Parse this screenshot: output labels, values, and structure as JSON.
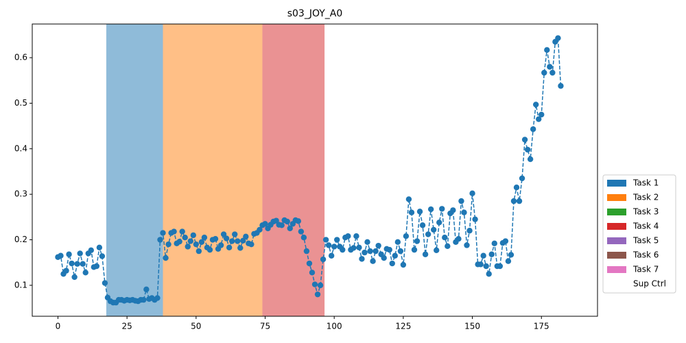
{
  "chart_data": {
    "type": "line",
    "title": "s03_JOY_A0",
    "values": [
      0.162,
      0.165,
      0.125,
      0.132,
      0.168,
      0.148,
      0.118,
      0.147,
      0.17,
      0.147,
      0.128,
      0.17,
      0.177,
      0.14,
      0.142,
      0.183,
      0.164,
      0.105,
      0.073,
      0.065,
      0.062,
      0.062,
      0.068,
      0.068,
      0.066,
      0.068,
      0.067,
      0.068,
      0.066,
      0.065,
      0.068,
      0.068,
      0.091,
      0.07,
      0.072,
      0.068,
      0.072,
      0.2,
      0.215,
      0.16,
      0.19,
      0.215,
      0.218,
      0.192,
      0.196,
      0.218,
      0.205,
      0.185,
      0.197,
      0.21,
      0.19,
      0.175,
      0.195,
      0.205,
      0.183,
      0.178,
      0.2,
      0.202,
      0.18,
      0.188,
      0.212,
      0.203,
      0.183,
      0.197,
      0.212,
      0.197,
      0.182,
      0.198,
      0.207,
      0.192,
      0.19,
      0.213,
      0.215,
      0.222,
      0.232,
      0.235,
      0.225,
      0.233,
      0.24,
      0.242,
      0.233,
      0.232,
      0.243,
      0.24,
      0.225,
      0.235,
      0.243,
      0.241,
      0.218,
      0.205,
      0.175,
      0.148,
      0.128,
      0.102,
      0.08,
      0.1,
      0.157,
      0.2,
      0.188,
      0.165,
      0.185,
      0.2,
      0.185,
      0.178,
      0.205,
      0.208,
      0.178,
      0.182,
      0.208,
      0.183,
      0.158,
      0.172,
      0.195,
      0.175,
      0.153,
      0.175,
      0.187,
      0.168,
      0.16,
      0.18,
      0.178,
      0.148,
      0.165,
      0.195,
      0.175,
      0.145,
      0.208,
      0.289,
      0.26,
      0.178,
      0.197,
      0.262,
      0.232,
      0.168,
      0.212,
      0.267,
      0.222,
      0.177,
      0.238,
      0.268,
      0.205,
      0.186,
      0.258,
      0.265,
      0.195,
      0.202,
      0.285,
      0.26,
      0.188,
      0.22,
      0.302,
      0.245,
      0.146,
      0.146,
      0.165,
      0.142,
      0.125,
      0.168,
      0.192,
      0.142,
      0.142,
      0.193,
      0.197,
      0.153,
      0.167,
      0.285,
      0.315,
      0.285,
      0.335,
      0.42,
      0.398,
      0.377,
      0.443,
      0.497,
      0.465,
      0.475,
      0.567,
      0.617,
      0.58,
      0.567,
      0.635,
      0.643,
      0.538
    ],
    "color": "#1f77b4",
    "xlim": [
      -9.3,
      195.3
    ],
    "xticks": [
      0,
      25,
      50,
      75,
      100,
      125,
      150,
      175
    ],
    "ylim": [
      0.032,
      0.674
    ],
    "yticks": [
      0.1,
      0.2,
      0.3,
      0.4,
      0.5,
      0.6
    ],
    "spans": [
      {
        "start": 17.5,
        "end": 38,
        "color": "#8fbbd9"
      },
      {
        "start": 38,
        "end": 74,
        "color": "#ffbf86"
      },
      {
        "start": 74,
        "end": 96.5,
        "color": "#ea9293"
      }
    ],
    "legend": [
      {
        "name": "Task 1",
        "color": "#1f77b4"
      },
      {
        "name": "Task 2",
        "color": "#ff7f0e"
      },
      {
        "name": "Task 3",
        "color": "#2ca02c"
      },
      {
        "name": "Task 4",
        "color": "#d62728"
      },
      {
        "name": "Task 5",
        "color": "#9467bd"
      },
      {
        "name": "Task 6",
        "color": "#8c564b"
      },
      {
        "name": "Task 7",
        "color": "#e377c2"
      },
      {
        "name": "Sup Ctrl",
        "color": "#ffffff"
      }
    ]
  }
}
